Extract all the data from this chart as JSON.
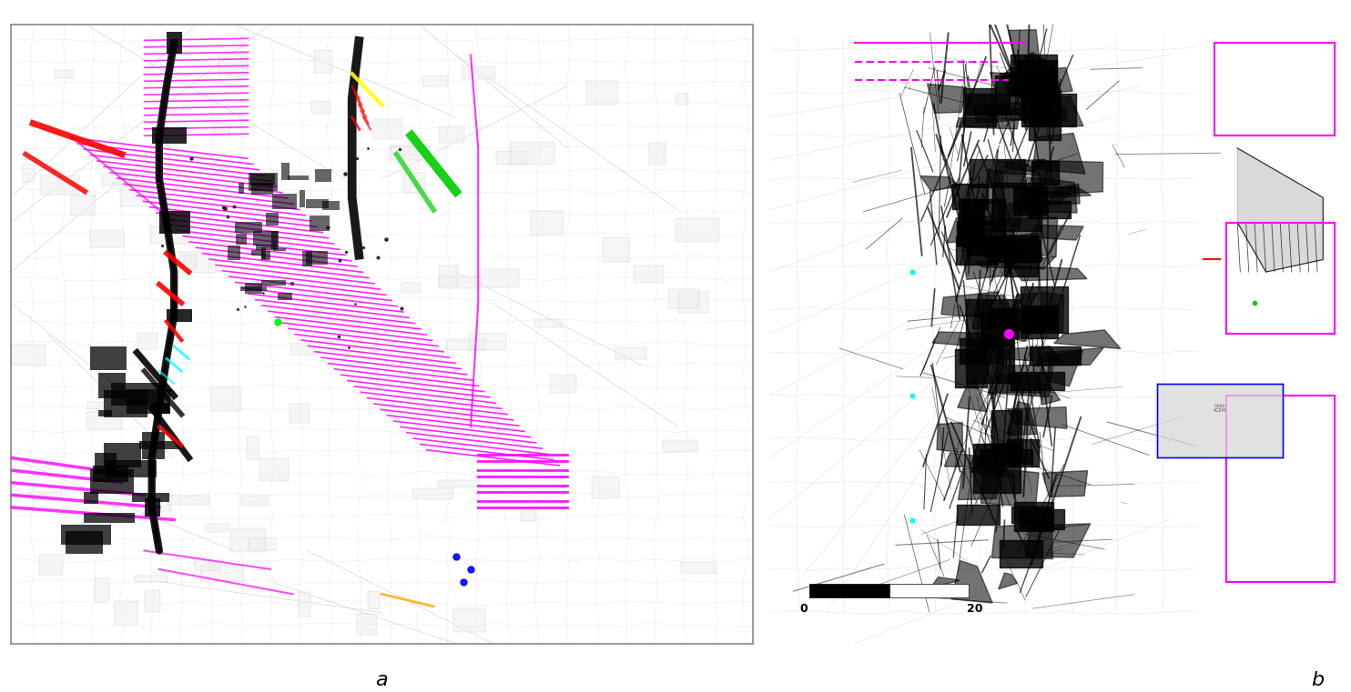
{
  "figure_width": 14.84,
  "figure_height": 7.61,
  "dpi": 100,
  "bg": "#ffffff",
  "panel_a_bg": "#ffffff",
  "panel_b_bg": "#ffffff",
  "panel_a_border": "#888888",
  "label_fontsize": 16,
  "label_a": "a",
  "label_b": "b",
  "magenta": "#FF00FF",
  "red": "#FF0000",
  "black": "#000000",
  "green": "#00BB00",
  "cyan": "#00FFFF",
  "yellow": "#FFFF00",
  "blue": "#0000FF",
  "orange": "#FFA500",
  "gray_road": "#C8C8C8",
  "gray_light": "#E8E8E8",
  "gray_medium": "#B0B0B0",
  "scale_zero": "0",
  "scale_label": "20"
}
